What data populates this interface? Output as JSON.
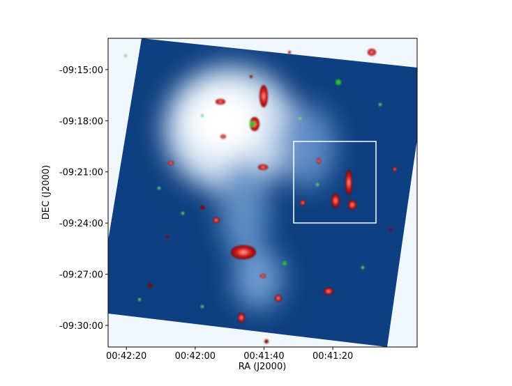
{
  "chart_data": {
    "type": "image",
    "xlabel": "RA (J2000)",
    "ylabel": "DEC (J2000)",
    "xlim": [
      2545.3,
      2455.5
    ],
    "xticks": [
      {
        "value": 2540,
        "label": "00:42:20"
      },
      {
        "value": 2520,
        "label": "00:42:00"
      },
      {
        "value": 2500,
        "label": "00:41:40"
      },
      {
        "value": 2480,
        "label": "00:41:20"
      }
    ],
    "ylim": [
      -34276,
      -33190
    ],
    "yticks": [
      {
        "value": -33300,
        "label": "-09:15:00"
      },
      {
        "value": -33480,
        "label": "-09:18:00"
      },
      {
        "value": -33660,
        "label": "-09:21:00"
      },
      {
        "value": -33840,
        "label": "-09:24:00"
      },
      {
        "value": -34020,
        "label": "-09:27:00"
      },
      {
        "value": -34200,
        "label": "-09:30:00"
      }
    ]
  }
}
